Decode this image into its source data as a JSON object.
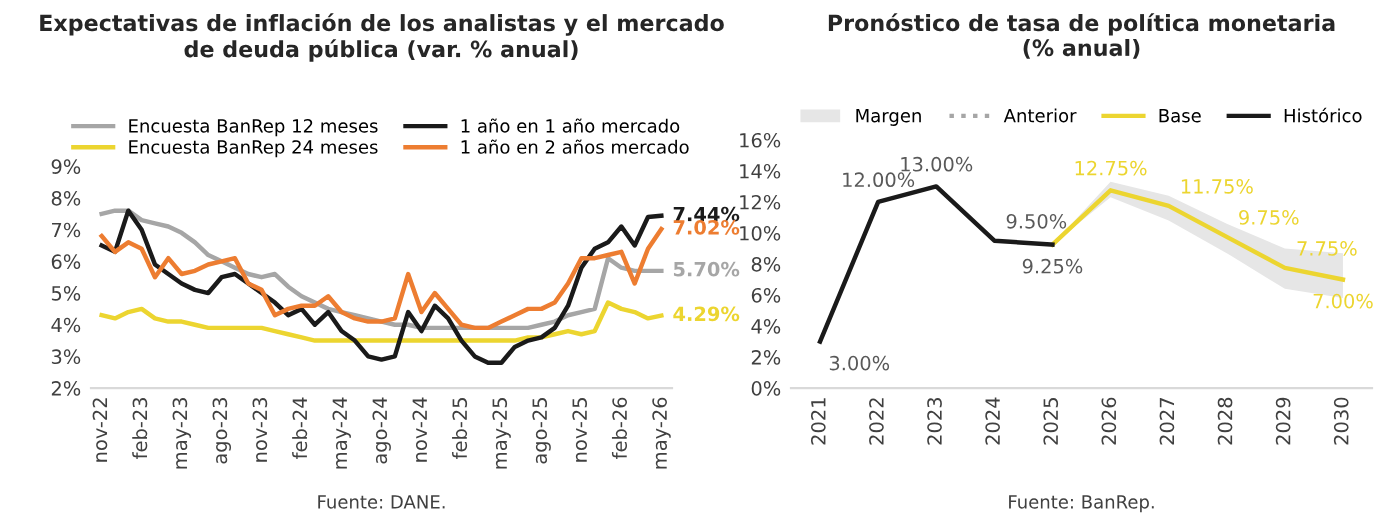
{
  "chart_data": [
    {
      "type": "line",
      "title": "Expectativas de inflación de los analistas y el mercado\nde deuda pública (var. % anual)",
      "categories": [
        "nov-22",
        null,
        null,
        "feb-23",
        null,
        null,
        "may-23",
        null,
        null,
        "ago-23",
        null,
        null,
        "nov-23",
        null,
        null,
        "feb-24",
        null,
        null,
        "may-24",
        null,
        null,
        "ago-24",
        null,
        null,
        "nov-24",
        null,
        null,
        "feb-25",
        null,
        null,
        "may-25",
        null,
        null,
        "ago-25",
        null,
        null,
        "nov-25",
        null,
        null,
        "feb-26",
        null,
        null,
        "may-26"
      ],
      "series": [
        {
          "name": "Encuesta BanRep 12 meses",
          "color": "#a6a6a6",
          "values": [
            7.5,
            7.6,
            7.6,
            7.3,
            7.2,
            7.1,
            6.9,
            6.6,
            6.2,
            6.0,
            5.8,
            5.6,
            5.5,
            5.6,
            5.2,
            4.9,
            4.7,
            4.5,
            4.4,
            4.3,
            4.2,
            4.1,
            4.0,
            4.0,
            3.9,
            3.9,
            3.9,
            3.9,
            3.9,
            3.9,
            3.9,
            3.9,
            3.9,
            4.0,
            4.1,
            4.3,
            4.4,
            4.5,
            6.1,
            5.8,
            5.7,
            5.7,
            5.7
          ],
          "value_labels": [
            null,
            null,
            null,
            null,
            null,
            null,
            null,
            null,
            null,
            null,
            null,
            null,
            null,
            null,
            null,
            null,
            null,
            null,
            null,
            null,
            null,
            null,
            null,
            null,
            null,
            null,
            null,
            null,
            null,
            null,
            null,
            null,
            null,
            null,
            null,
            null,
            null,
            null,
            null,
            null,
            null,
            null,
            "5.70%"
          ]
        },
        {
          "name": "Encuesta BanRep 24 meses",
          "color": "#ecd530",
          "values": [
            4.3,
            4.2,
            4.4,
            4.5,
            4.2,
            4.1,
            4.1,
            4.0,
            3.9,
            3.9,
            3.9,
            3.9,
            3.9,
            3.8,
            3.7,
            3.6,
            3.5,
            3.5,
            3.5,
            3.5,
            3.5,
            3.5,
            3.5,
            3.5,
            3.5,
            3.5,
            3.5,
            3.5,
            3.5,
            3.5,
            3.5,
            3.5,
            3.6,
            3.6,
            3.7,
            3.8,
            3.7,
            3.8,
            4.7,
            4.5,
            4.4,
            4.2,
            4.29
          ],
          "value_labels": [
            null,
            null,
            null,
            null,
            null,
            null,
            null,
            null,
            null,
            null,
            null,
            null,
            null,
            null,
            null,
            null,
            null,
            null,
            null,
            null,
            null,
            null,
            null,
            null,
            null,
            null,
            null,
            null,
            null,
            null,
            null,
            null,
            null,
            null,
            null,
            null,
            null,
            null,
            null,
            null,
            null,
            null,
            "4.29%"
          ]
        },
        {
          "name": "1 año en 1 año mercado",
          "color": "#1a1a1a",
          "values": [
            6.5,
            6.3,
            7.6,
            7.0,
            5.9,
            5.6,
            5.3,
            5.1,
            5.0,
            5.5,
            5.6,
            5.3,
            5.0,
            4.7,
            4.3,
            4.5,
            4.0,
            4.4,
            3.8,
            3.5,
            3.0,
            2.9,
            3.0,
            4.4,
            3.8,
            4.6,
            4.2,
            3.5,
            3.0,
            2.8,
            2.8,
            3.3,
            3.5,
            3.6,
            3.9,
            4.6,
            5.8,
            6.4,
            6.6,
            7.1,
            6.5,
            7.4,
            7.44
          ],
          "value_labels": [
            null,
            null,
            null,
            null,
            null,
            null,
            null,
            null,
            null,
            null,
            null,
            null,
            null,
            null,
            null,
            null,
            null,
            null,
            null,
            null,
            null,
            null,
            null,
            null,
            null,
            null,
            null,
            null,
            null,
            null,
            null,
            null,
            null,
            null,
            null,
            null,
            null,
            null,
            null,
            null,
            null,
            null,
            "7.44%"
          ]
        },
        {
          "name": "1 año en 2 años mercado",
          "color": "#ed7d31",
          "values": [
            6.8,
            6.3,
            6.6,
            6.4,
            5.5,
            6.1,
            5.6,
            5.7,
            5.9,
            6.0,
            6.1,
            5.3,
            5.1,
            4.3,
            4.5,
            4.6,
            4.6,
            4.9,
            4.4,
            4.2,
            4.1,
            4.1,
            4.2,
            5.6,
            4.4,
            5.0,
            4.5,
            4.0,
            3.9,
            3.9,
            4.1,
            4.3,
            4.5,
            4.5,
            4.7,
            5.3,
            6.1,
            6.1,
            6.2,
            6.3,
            5.3,
            6.4,
            7.02
          ],
          "value_labels": [
            null,
            null,
            null,
            null,
            null,
            null,
            null,
            null,
            null,
            null,
            null,
            null,
            null,
            null,
            null,
            null,
            null,
            null,
            null,
            null,
            null,
            null,
            null,
            null,
            null,
            null,
            null,
            null,
            null,
            null,
            null,
            null,
            null,
            null,
            null,
            null,
            null,
            null,
            null,
            null,
            null,
            null,
            "7.02%"
          ]
        }
      ],
      "ylim": [
        2,
        9
      ],
      "yticks": [
        {
          "value": 2,
          "label": "2%"
        },
        {
          "value": 3,
          "label": "3%"
        },
        {
          "value": 4,
          "label": "4%"
        },
        {
          "value": 5,
          "label": "5%"
        },
        {
          "value": 6,
          "label": "6%"
        },
        {
          "value": 7,
          "label": "7%"
        },
        {
          "value": 8,
          "label": "8%"
        },
        {
          "value": 9,
          "label": "9%"
        }
      ],
      "grid": false,
      "legend": "top",
      "marker": "none",
      "line_style": "solid",
      "annotations": [
        "Fuente: DANE."
      ]
    },
    {
      "type": "line",
      "title": "Pronóstico de tasa de política monetaria\n(% anual)",
      "categories": [
        "2021",
        "2022",
        "2023",
        "2024",
        "2025",
        "2026",
        "2027",
        "2028",
        "2029",
        "2030"
      ],
      "series": [
        {
          "name": "Margen",
          "type": "area",
          "color": "#e6e6e6",
          "values": [
            null,
            null,
            null,
            null,
            null,
            null,
            null,
            null,
            null,
            null
          ]
        },
        {
          "name": "Anterior",
          "color": "#a6a6a6",
          "line_style": "dotted",
          "values": [
            null,
            null,
            null,
            null,
            null,
            null,
            null,
            null,
            null,
            null
          ]
        },
        {
          "name": "Base",
          "color": "#ecd530",
          "values": [
            null,
            null,
            null,
            null,
            9.25,
            12.75,
            11.75,
            9.75,
            7.75,
            7.0
          ],
          "lower": [
            null,
            null,
            null,
            null,
            9.25,
            12.3,
            10.8,
            8.7,
            6.4,
            5.8
          ],
          "upper": [
            null,
            null,
            null,
            null,
            9.25,
            13.3,
            12.4,
            10.6,
            9.0,
            8.7
          ],
          "value_labels": [
            null,
            null,
            null,
            null,
            null,
            "12.75%",
            "11.75%",
            "9.75%",
            "7.75%",
            "7.00%"
          ]
        },
        {
          "name": "Histórico",
          "color": "#1a1a1a",
          "values": [
            3.0,
            12.0,
            13.0,
            9.5,
            9.25,
            null,
            null,
            null,
            null,
            null
          ],
          "value_labels": [
            "3.00%",
            "12.00%",
            "13.00%",
            "9.50%",
            "9.25%",
            null,
            null,
            null,
            null,
            null
          ]
        }
      ],
      "ylim": [
        0,
        16
      ],
      "yticks": [
        {
          "value": 0,
          "label": "0%"
        },
        {
          "value": 2,
          "label": "2%"
        },
        {
          "value": 4,
          "label": "4%"
        },
        {
          "value": 6,
          "label": "6%"
        },
        {
          "value": 8,
          "label": "8%"
        },
        {
          "value": 10,
          "label": "10%"
        },
        {
          "value": 12,
          "label": "12%"
        },
        {
          "value": 14,
          "label": "14%"
        },
        {
          "value": 16,
          "label": "16%"
        }
      ],
      "grid": false,
      "legend": "top",
      "marker": "none",
      "line_style": "solid",
      "annotations": [
        "Fuente: BanRep."
      ]
    }
  ]
}
